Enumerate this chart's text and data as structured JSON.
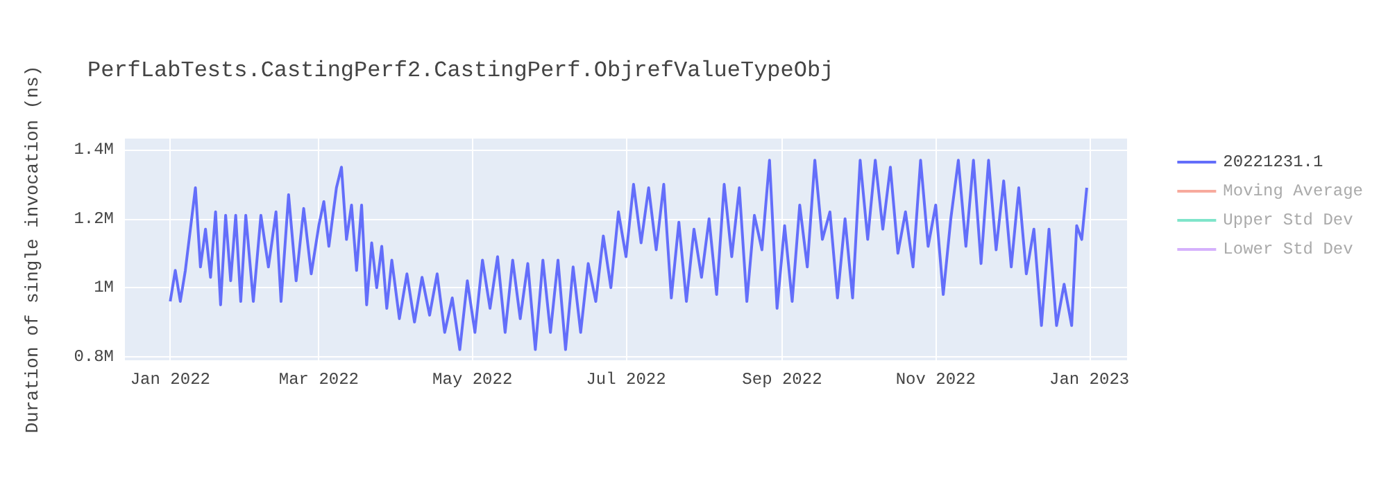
{
  "chart_data": {
    "type": "line",
    "title": "PerfLabTests.CastingPerf2.CastingPerf.ObjrefValueTypeObj",
    "ylabel": "Duration of single invocation (ns)",
    "x": [
      "2022-01-01",
      "2022-01-03",
      "2022-01-05",
      "2022-01-07",
      "2022-01-09",
      "2022-01-11",
      "2022-01-13",
      "2022-01-15",
      "2022-01-17",
      "2022-01-19",
      "2022-01-21",
      "2022-01-23",
      "2022-01-25",
      "2022-01-27",
      "2022-01-29",
      "2022-01-31",
      "2022-02-03",
      "2022-02-06",
      "2022-02-09",
      "2022-02-12",
      "2022-02-14",
      "2022-02-17",
      "2022-02-20",
      "2022-02-23",
      "2022-02-26",
      "2022-03-01",
      "2022-03-03",
      "2022-03-05",
      "2022-03-08",
      "2022-03-10",
      "2022-03-12",
      "2022-03-14",
      "2022-03-16",
      "2022-03-18",
      "2022-03-20",
      "2022-03-22",
      "2022-03-24",
      "2022-03-26",
      "2022-03-28",
      "2022-03-30",
      "2022-04-02",
      "2022-04-05",
      "2022-04-08",
      "2022-04-11",
      "2022-04-14",
      "2022-04-17",
      "2022-04-20",
      "2022-04-23",
      "2022-04-26",
      "2022-04-29",
      "2022-05-02",
      "2022-05-05",
      "2022-05-08",
      "2022-05-11",
      "2022-05-14",
      "2022-05-17",
      "2022-05-20",
      "2022-05-23",
      "2022-05-26",
      "2022-05-29",
      "2022-06-01",
      "2022-06-04",
      "2022-06-07",
      "2022-06-10",
      "2022-06-13",
      "2022-06-16",
      "2022-06-19",
      "2022-06-22",
      "2022-06-25",
      "2022-06-28",
      "2022-07-01",
      "2022-07-04",
      "2022-07-07",
      "2022-07-10",
      "2022-07-13",
      "2022-07-16",
      "2022-07-19",
      "2022-07-22",
      "2022-07-25",
      "2022-07-28",
      "2022-07-31",
      "2022-08-03",
      "2022-08-06",
      "2022-08-09",
      "2022-08-12",
      "2022-08-15",
      "2022-08-18",
      "2022-08-21",
      "2022-08-24",
      "2022-08-27",
      "2022-08-30",
      "2022-09-02",
      "2022-09-05",
      "2022-09-08",
      "2022-09-11",
      "2022-09-14",
      "2022-09-17",
      "2022-09-20",
      "2022-09-23",
      "2022-09-26",
      "2022-09-29",
      "2022-10-02",
      "2022-10-05",
      "2022-10-08",
      "2022-10-11",
      "2022-10-14",
      "2022-10-17",
      "2022-10-20",
      "2022-10-23",
      "2022-10-26",
      "2022-10-29",
      "2022-11-01",
      "2022-11-04",
      "2022-11-07",
      "2022-11-10",
      "2022-11-13",
      "2022-11-16",
      "2022-11-19",
      "2022-11-22",
      "2022-11-25",
      "2022-11-28",
      "2022-12-01",
      "2022-12-04",
      "2022-12-07",
      "2022-12-10",
      "2022-12-13",
      "2022-12-16",
      "2022-12-19",
      "2022-12-22",
      "2022-12-25",
      "2022-12-27",
      "2022-12-29",
      "2022-12-31"
    ],
    "series": [
      {
        "name": "20221231.1",
        "color": "#636efa",
        "values": [
          960000,
          1050000,
          960000,
          1050000,
          1170000,
          1290000,
          1060000,
          1170000,
          1030000,
          1220000,
          950000,
          1210000,
          1020000,
          1210000,
          960000,
          1210000,
          960000,
          1210000,
          1060000,
          1220000,
          960000,
          1270000,
          1020000,
          1230000,
          1040000,
          1180000,
          1250000,
          1120000,
          1290000,
          1350000,
          1140000,
          1240000,
          1050000,
          1240000,
          950000,
          1130000,
          1000000,
          1120000,
          940000,
          1080000,
          910000,
          1040000,
          900000,
          1030000,
          920000,
          1040000,
          870000,
          970000,
          820000,
          1020000,
          870000,
          1080000,
          940000,
          1090000,
          870000,
          1080000,
          910000,
          1070000,
          820000,
          1080000,
          870000,
          1080000,
          820000,
          1060000,
          870000,
          1070000,
          960000,
          1150000,
          1000000,
          1220000,
          1090000,
          1300000,
          1130000,
          1290000,
          1110000,
          1300000,
          970000,
          1190000,
          960000,
          1170000,
          1030000,
          1200000,
          980000,
          1300000,
          1090000,
          1290000,
          960000,
          1210000,
          1110000,
          1370000,
          940000,
          1180000,
          960000,
          1240000,
          1060000,
          1370000,
          1140000,
          1220000,
          970000,
          1200000,
          970000,
          1370000,
          1140000,
          1370000,
          1170000,
          1350000,
          1100000,
          1220000,
          1060000,
          1370000,
          1120000,
          1240000,
          980000,
          1200000,
          1370000,
          1120000,
          1370000,
          1070000,
          1370000,
          1110000,
          1310000,
          1060000,
          1290000,
          1040000,
          1170000,
          890000,
          1170000,
          890000,
          1010000,
          890000,
          1180000,
          1140000,
          1290000
        ]
      },
      {
        "name": "Moving Average",
        "color": "#ef553b",
        "values": [
          null,
          null,
          null,
          null,
          null,
          null,
          null,
          null,
          null,
          null,
          null,
          null,
          null,
          null,
          null,
          null,
          null,
          null,
          null,
          null,
          null,
          null,
          null,
          null,
          null,
          null,
          null,
          null,
          null,
          null,
          null,
          null,
          null,
          null,
          null,
          null,
          null,
          null,
          null,
          null,
          null,
          null,
          null,
          null,
          null,
          null,
          null,
          null,
          null,
          null,
          null,
          null,
          null,
          null,
          null,
          null,
          null,
          null,
          null,
          null,
          null,
          null,
          null,
          null,
          null,
          null,
          null,
          null,
          null,
          null,
          null,
          null,
          null,
          null,
          null,
          null,
          null,
          null,
          null,
          null,
          null,
          null,
          null,
          null,
          null,
          null,
          null,
          null,
          null,
          null,
          null,
          null,
          null,
          null,
          null,
          null,
          null,
          null,
          null,
          null,
          null,
          null,
          null,
          null,
          null,
          null,
          null,
          null,
          null,
          null,
          null,
          null,
          null,
          null,
          null,
          null,
          null,
          null,
          null,
          null,
          null,
          null,
          null,
          null,
          null,
          null,
          null,
          null,
          null,
          null,
          null,
          null,
          null
        ]
      },
      {
        "name": "Upper Std Dev",
        "color": "#00cc96",
        "values": [
          null,
          null,
          null,
          null,
          null,
          null,
          null,
          null,
          null,
          null,
          null,
          null,
          null,
          null,
          null,
          null,
          null,
          null,
          null,
          null,
          null,
          null,
          null,
          null,
          null,
          null,
          null,
          null,
          null,
          null,
          null,
          null,
          null,
          null,
          null,
          null,
          null,
          null,
          null,
          null,
          null,
          null,
          null,
          null,
          null,
          null,
          null,
          null,
          null,
          null,
          null,
          null,
          null,
          null,
          null,
          null,
          null,
          null,
          null,
          null,
          null,
          null,
          null,
          null,
          null,
          null,
          null,
          null,
          null,
          null,
          null,
          null,
          null,
          null,
          null,
          null,
          null,
          null,
          null,
          null,
          null,
          null,
          null,
          null,
          null,
          null,
          null,
          null,
          null,
          null,
          null,
          null,
          null,
          null,
          null,
          null,
          null,
          null,
          null,
          null,
          null,
          null,
          null,
          null,
          null,
          null,
          null,
          null,
          null,
          null,
          null,
          null,
          null,
          null,
          null,
          null,
          null,
          null,
          null,
          null,
          null,
          null,
          null,
          null,
          null,
          null,
          null,
          null,
          null,
          null,
          null,
          null,
          null
        ]
      },
      {
        "name": "Lower Std Dev",
        "color": "#ab63fa",
        "values": [
          null,
          null,
          null,
          null,
          null,
          null,
          null,
          null,
          null,
          null,
          null,
          null,
          null,
          null,
          null,
          null,
          null,
          null,
          null,
          null,
          null,
          null,
          null,
          null,
          null,
          null,
          null,
          null,
          null,
          null,
          null,
          null,
          null,
          null,
          null,
          null,
          null,
          null,
          null,
          null,
          null,
          null,
          null,
          null,
          null,
          null,
          null,
          null,
          null,
          null,
          null,
          null,
          null,
          null,
          null,
          null,
          null,
          null,
          null,
          null,
          null,
          null,
          null,
          null,
          null,
          null,
          null,
          null,
          null,
          null,
          null,
          null,
          null,
          null,
          null,
          null,
          null,
          null,
          null,
          null,
          null,
          null,
          null,
          null,
          null,
          null,
          null,
          null,
          null,
          null,
          null,
          null,
          null,
          null,
          null,
          null,
          null,
          null,
          null,
          null,
          null,
          null,
          null,
          null,
          null,
          null,
          null,
          null,
          null,
          null,
          null,
          null,
          null,
          null,
          null,
          null,
          null,
          null,
          null,
          null,
          null,
          null,
          null,
          null,
          null,
          null,
          null,
          null,
          null,
          null,
          null,
          null,
          null
        ]
      }
    ],
    "xlim": [
      "2021-12-14",
      "2023-01-16"
    ],
    "xticks": [
      {
        "value": "2022-01-01",
        "label": "Jan 2022"
      },
      {
        "value": "2022-03-01",
        "label": "Mar 2022"
      },
      {
        "value": "2022-05-01",
        "label": "May 2022"
      },
      {
        "value": "2022-07-01",
        "label": "Jul 2022"
      },
      {
        "value": "2022-09-01",
        "label": "Sep 2022"
      },
      {
        "value": "2022-11-01",
        "label": "Nov 2022"
      },
      {
        "value": "2023-01-01",
        "label": "Jan 2023"
      }
    ],
    "ylim": [
      789000,
      1433000
    ],
    "yticks": [
      {
        "value": 800000,
        "label": "0.8M"
      },
      {
        "value": 1000000,
        "label": "1M"
      },
      {
        "value": 1200000,
        "label": "1.2M"
      },
      {
        "value": 1400000,
        "label": "1.4M"
      }
    ],
    "grid": true,
    "legend": "top right",
    "marker": "none",
    "line_style": "solid"
  }
}
